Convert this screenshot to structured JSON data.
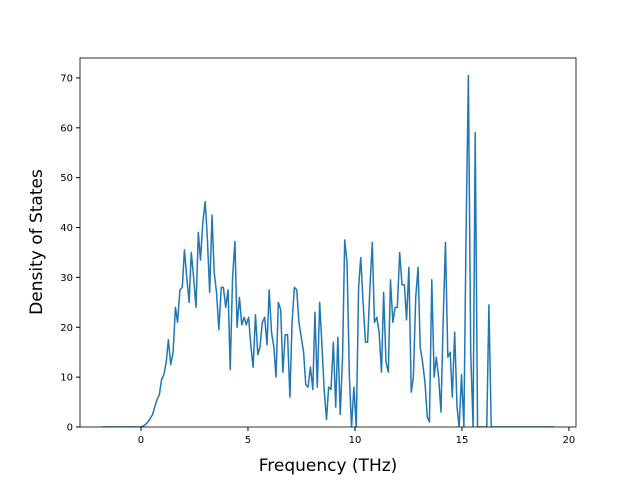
{
  "chart_data": {
    "type": "line",
    "xlabel": "Frequency (THz)",
    "ylabel": "Density of States",
    "xlim": [
      -2.85,
      20.33
    ],
    "ylim": [
      0,
      74
    ],
    "xticks": [
      0,
      5,
      10,
      15,
      20
    ],
    "yticks": [
      0,
      10,
      20,
      30,
      40,
      50,
      60,
      70
    ],
    "series": [
      {
        "color": "#1f77b4",
        "x": [
          -1.8,
          0,
          0.11,
          0.21,
          0.32,
          0.43,
          0.54,
          0.64,
          0.75,
          0.86,
          0.96,
          1.07,
          1.18,
          1.28,
          1.39,
          1.5,
          1.61,
          1.71,
          1.82,
          1.93,
          2.03,
          2.14,
          2.25,
          2.35,
          2.46,
          2.57,
          2.68,
          2.78,
          2.89,
          3.0,
          3.1,
          3.21,
          3.32,
          3.42,
          3.53,
          3.64,
          3.75,
          3.85,
          3.96,
          4.07,
          4.17,
          4.28,
          4.39,
          4.49,
          4.6,
          4.71,
          4.82,
          4.92,
          5.03,
          5.14,
          5.24,
          5.35,
          5.46,
          5.56,
          5.67,
          5.78,
          5.89,
          5.99,
          6.1,
          6.21,
          6.31,
          6.42,
          6.53,
          6.63,
          6.74,
          6.85,
          6.96,
          7.06,
          7.17,
          7.28,
          7.38,
          7.49,
          7.6,
          7.7,
          7.81,
          7.92,
          8.03,
          8.13,
          8.24,
          8.35,
          8.45,
          8.56,
          8.67,
          8.77,
          8.88,
          8.99,
          9.1,
          9.2,
          9.31,
          9.42,
          9.52,
          9.63,
          9.74,
          9.84,
          9.95,
          10.06,
          10.17,
          10.27,
          10.38,
          10.49,
          10.59,
          10.7,
          10.81,
          10.91,
          11.02,
          11.13,
          11.24,
          11.34,
          11.45,
          11.56,
          11.66,
          11.77,
          11.88,
          11.98,
          12.09,
          12.2,
          12.31,
          12.41,
          12.52,
          12.63,
          12.73,
          12.84,
          12.95,
          13.05,
          13.16,
          13.27,
          13.38,
          13.48,
          13.59,
          13.7,
          13.8,
          13.91,
          14.02,
          14.12,
          14.23,
          14.34,
          14.45,
          14.55,
          14.66,
          14.77,
          14.87,
          14.98,
          15.09,
          15.19,
          15.3,
          15.41,
          15.52,
          15.62,
          15.73,
          15.84,
          15.94,
          16.05,
          16.16,
          16.26,
          16.37,
          16.48,
          19.3
        ],
        "values": [
          0,
          0,
          0.2,
          0.5,
          1,
          1.7,
          2.5,
          4,
          5.5,
          6.5,
          9.5,
          10.5,
          13,
          17.5,
          12.5,
          15,
          24,
          21,
          27.5,
          28,
          35.5,
          30,
          25,
          35,
          30,
          24,
          39,
          33.5,
          41,
          45.2,
          38,
          27,
          42.5,
          31,
          27,
          19.5,
          28,
          28,
          24,
          27.5,
          11.5,
          30,
          37.2,
          20,
          26,
          20.5,
          22,
          20.5,
          22,
          16,
          12,
          22.5,
          14.5,
          16,
          21,
          22,
          16.5,
          27.5,
          19,
          16,
          10,
          25,
          23.5,
          11,
          18.5,
          18.5,
          6,
          21,
          28,
          27.5,
          21,
          18,
          15,
          8.5,
          8,
          12,
          7.5,
          23,
          8,
          25,
          17,
          7.5,
          1.5,
          8,
          7.5,
          17,
          4,
          18,
          2.5,
          14,
          37.5,
          33,
          10,
          0,
          8,
          0,
          28,
          34,
          25,
          17,
          17,
          28,
          37,
          21,
          22,
          19,
          11,
          27,
          13,
          11,
          29.5,
          21,
          24,
          24,
          35,
          28.5,
          28.5,
          21.5,
          32,
          7,
          10,
          26,
          32,
          16,
          13,
          9,
          2,
          1,
          29.5,
          10,
          14,
          10,
          3,
          21,
          37,
          14,
          15,
          6,
          19,
          4,
          0,
          10.5,
          0,
          38,
          70.5,
          15,
          0,
          59,
          0,
          0,
          0,
          0,
          0,
          24.5,
          0,
          0,
          0
        ]
      }
    ]
  }
}
